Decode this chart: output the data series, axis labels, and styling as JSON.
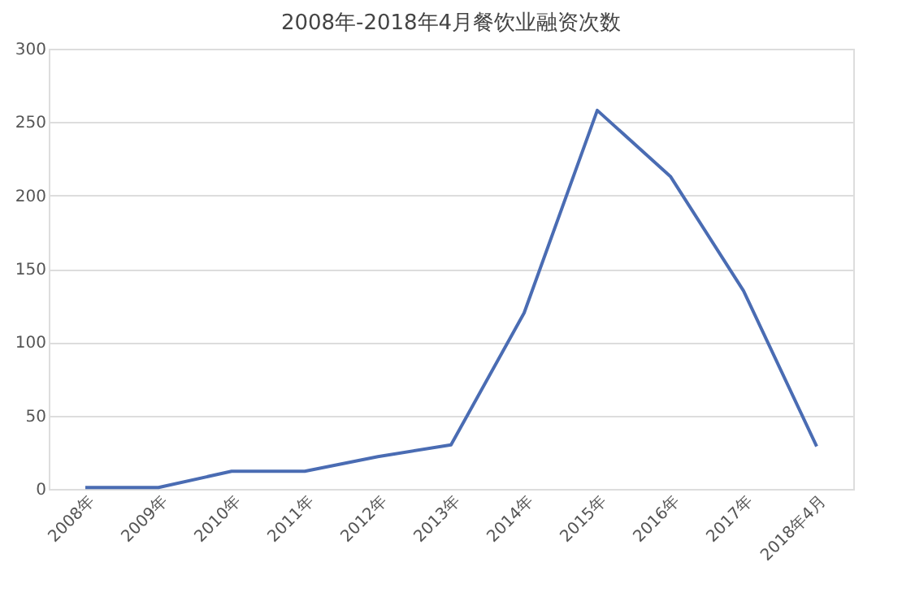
{
  "chart_data": {
    "type": "line",
    "title": "2008年-2018年4月餐饮业融资次数",
    "categories": [
      "2008年",
      "2009年",
      "2010年",
      "2011年",
      "2012年",
      "2013年",
      "2014年",
      "2015年",
      "2016年",
      "2017年",
      "2018年4月"
    ],
    "series": [
      {
        "color": "#4a6cb3",
        "values": [
          1,
          1,
          12,
          12,
          22,
          30,
          120,
          258,
          213,
          135,
          29
        ]
      }
    ],
    "ylim": [
      0,
      300
    ],
    "yticks": [
      0,
      50,
      100,
      150,
      200,
      250,
      300
    ],
    "grid": "y",
    "marker": "none",
    "line_style": "solid"
  }
}
